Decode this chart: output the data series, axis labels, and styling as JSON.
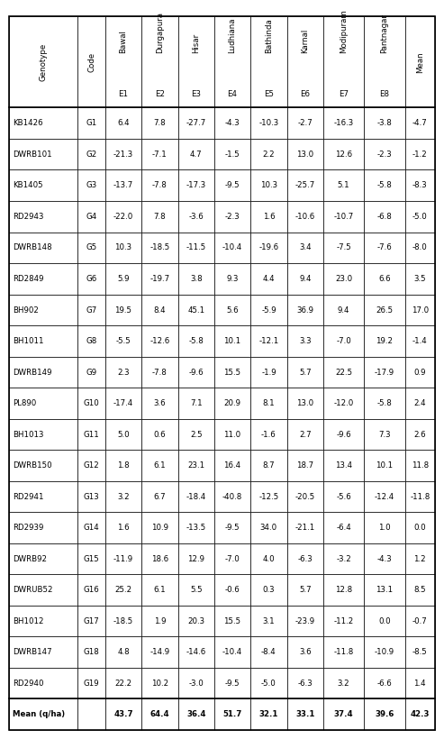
{
  "columns_top": [
    "Mean",
    "Pantnagar\nE8",
    "Modipuram\nE7",
    "Karnal\nE6",
    "Bathinda\nE5",
    "Ludhiana\nE4",
    "Hisar\nE3",
    "Durgapura\nE2",
    "Bawal\nE1",
    "Code",
    "Genotype"
  ],
  "columns_display": [
    "Genotype",
    "Code",
    "Bawal\nE1",
    "Durgapura\nE2",
    "Hisar\nE3",
    "Ludhiana\nE4",
    "Bathinda\nE5",
    "Karnal\nE6",
    "Modipuram\nE7",
    "Pantnagar\nE8",
    "Mean"
  ],
  "rows": [
    [
      "KB1426",
      "G1",
      "6.4",
      "7.8",
      "-27.7",
      "-4.3",
      "-10.3",
      "-2.7",
      "-16.3",
      "-3.8",
      "-4.7"
    ],
    [
      "DWRB101",
      "G2",
      "-21.3",
      "-7.1",
      "4.7",
      "-1.5",
      "2.2",
      "13.0",
      "12.6",
      "-2.3",
      "-1.2"
    ],
    [
      "KB1405",
      "G3",
      "-13.7",
      "-7.8",
      "-17.3",
      "-9.5",
      "10.3",
      "-25.7",
      "5.1",
      "-5.8",
      "-8.3"
    ],
    [
      "RD2943",
      "G4",
      "-22.0",
      "7.8",
      "-3.6",
      "-2.3",
      "1.6",
      "-10.6",
      "-10.7",
      "-6.8",
      "-5.0"
    ],
    [
      "DWRB148",
      "G5",
      "10.3",
      "-18.5",
      "-11.5",
      "-10.4",
      "-19.6",
      "3.4",
      "-7.5",
      "-7.6",
      "-8.0"
    ],
    [
      "RD2849",
      "G6",
      "5.9",
      "-19.7",
      "3.8",
      "9.3",
      "4.4",
      "9.4",
      "23.0",
      "6.6",
      "3.5"
    ],
    [
      "BH902",
      "G7",
      "19.5",
      "8.4",
      "45.1",
      "5.6",
      "-5.9",
      "36.9",
      "9.4",
      "26.5",
      "17.0"
    ],
    [
      "BH1011",
      "G8",
      "-5.5",
      "-12.6",
      "-5.8",
      "10.1",
      "-12.1",
      "3.3",
      "-7.0",
      "19.2",
      "-1.4"
    ],
    [
      "DWRB149",
      "G9",
      "2.3",
      "-7.8",
      "-9.6",
      "15.5",
      "-1.9",
      "5.7",
      "22.5",
      "-17.9",
      "0.9"
    ],
    [
      "PL890",
      "G10",
      "-17.4",
      "3.6",
      "7.1",
      "20.9",
      "8.1",
      "13.0",
      "-12.0",
      "-5.8",
      "2.4"
    ],
    [
      "BH1013",
      "G11",
      "5.0",
      "0.6",
      "2.5",
      "11.0",
      "-1.6",
      "2.7",
      "-9.6",
      "7.3",
      "2.6"
    ],
    [
      "DWRB150",
      "G12",
      "1.8",
      "6.1",
      "23.1",
      "16.4",
      "8.7",
      "18.7",
      "13.4",
      "10.1",
      "11.8"
    ],
    [
      "RD2941",
      "G13",
      "3.2",
      "6.7",
      "-18.4",
      "-40.8",
      "-12.5",
      "-20.5",
      "-5.6",
      "-12.4",
      "-11.8"
    ],
    [
      "RD2939",
      "G14",
      "1.6",
      "10.9",
      "-13.5",
      "-9.5",
      "34.0",
      "-21.1",
      "-6.4",
      "1.0",
      "0.0"
    ],
    [
      "DWRB92",
      "G15",
      "-11.9",
      "18.6",
      "12.9",
      "-7.0",
      "4.0",
      "-6.3",
      "-3.2",
      "-4.3",
      "1.2"
    ],
    [
      "DWRUB52",
      "G16",
      "25.2",
      "6.1",
      "5.5",
      "-0.6",
      "0.3",
      "5.7",
      "12.8",
      "13.1",
      "8.5"
    ],
    [
      "BH1012",
      "G17",
      "-18.5",
      "1.9",
      "20.3",
      "15.5",
      "3.1",
      "-23.9",
      "-11.2",
      "0.0",
      "-0.7"
    ],
    [
      "DWRB147",
      "G18",
      "4.8",
      "-14.9",
      "-14.6",
      "-10.4",
      "-8.4",
      "3.6",
      "-11.8",
      "-10.9",
      "-8.5"
    ],
    [
      "RD2940",
      "G19",
      "22.2",
      "10.2",
      "-3.0",
      "-9.5",
      "-5.0",
      "-6.3",
      "3.2",
      "-6.6",
      "1.4"
    ],
    [
      "Mean (q/ha)",
      "",
      "43.7",
      "64.4",
      "36.4",
      "51.7",
      "32.1",
      "33.1",
      "37.4",
      "39.6",
      "42.3"
    ]
  ],
  "font_size": 6.2,
  "header_font_size": 6.2,
  "border_color": "#000000",
  "thick_lw": 1.2,
  "thin_lw": 0.5
}
